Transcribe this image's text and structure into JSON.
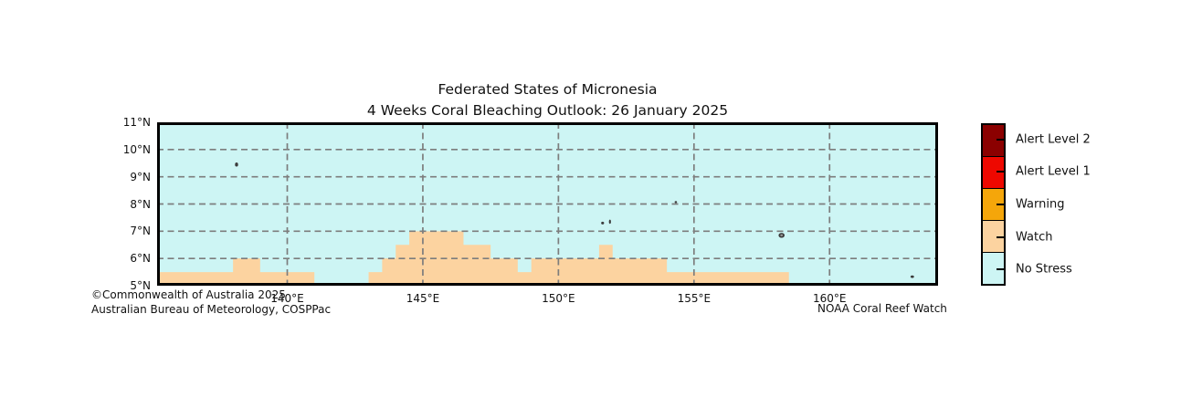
{
  "title": {
    "line1": "Federated States of Micronesia",
    "line2": "4 Weeks Coral Bleaching Outlook: 26 January 2025"
  },
  "map": {
    "lon_range": [
      135.2,
      164.0
    ],
    "lat_range": [
      5,
      11
    ],
    "lon_gridlines": [
      140,
      145,
      150,
      155,
      160
    ],
    "lat_gridlines": [
      6,
      7,
      8,
      9,
      10
    ],
    "x_ticks": [
      {
        "v": 140,
        "label": "140°E"
      },
      {
        "v": 145,
        "label": "145°E"
      },
      {
        "v": 150,
        "label": "150°E"
      },
      {
        "v": 155,
        "label": "155°E"
      },
      {
        "v": 160,
        "label": "160°E"
      }
    ],
    "y_ticks": [
      {
        "v": 11,
        "label": "11°N"
      },
      {
        "v": 10,
        "label": "10°N"
      },
      {
        "v": 9,
        "label": "9°N"
      },
      {
        "v": 8,
        "label": "8°N"
      },
      {
        "v": 7,
        "label": "7°N"
      },
      {
        "v": 6,
        "label": "6°N"
      },
      {
        "v": 5,
        "label": "5°N"
      }
    ],
    "background_status": "No Stress",
    "watch_segments": [
      {
        "lon_from": 135.2,
        "lon_to": 138.0,
        "lat_top": 5.5
      },
      {
        "lon_from": 138.0,
        "lon_to": 139.0,
        "lat_top": 6.0
      },
      {
        "lon_from": 139.0,
        "lon_to": 141.0,
        "lat_top": 5.5
      },
      {
        "lon_from": 143.0,
        "lon_to": 143.5,
        "lat_top": 5.5
      },
      {
        "lon_from": 143.5,
        "lon_to": 144.0,
        "lat_top": 6.0
      },
      {
        "lon_from": 144.0,
        "lon_to": 144.5,
        "lat_top": 6.5
      },
      {
        "lon_from": 144.5,
        "lon_to": 146.5,
        "lat_top": 7.0
      },
      {
        "lon_from": 146.5,
        "lon_to": 147.5,
        "lat_top": 6.5
      },
      {
        "lon_from": 147.5,
        "lon_to": 148.5,
        "lat_top": 6.0
      },
      {
        "lon_from": 148.5,
        "lon_to": 149.0,
        "lat_top": 5.5
      },
      {
        "lon_from": 149.0,
        "lon_to": 151.5,
        "lat_top": 6.0
      },
      {
        "lon_from": 151.5,
        "lon_to": 152.0,
        "lat_top": 6.5
      },
      {
        "lon_from": 152.0,
        "lon_to": 154.0,
        "lat_top": 6.0
      },
      {
        "lon_from": 154.0,
        "lon_to": 158.5,
        "lat_top": 5.5
      }
    ],
    "islands": [
      {
        "name": "yap",
        "lon": 138.13,
        "lat": 9.45,
        "rx": 1.7,
        "ry": 2.3
      },
      {
        "name": "reef-8n",
        "lon": 154.33,
        "lat": 8.07,
        "rx": 1.3,
        "ry": 1.2
      },
      {
        "name": "chuuk-west",
        "lon": 151.63,
        "lat": 7.3,
        "rx": 1.6,
        "ry": 1.5
      },
      {
        "name": "chuuk-east",
        "lon": 151.9,
        "lat": 7.35,
        "rx": 1.1,
        "ry": 2.3
      },
      {
        "name": "pohnpei",
        "lon": 158.23,
        "lat": 6.85,
        "rx": 3.3,
        "ry": 2.7,
        "inner_color": "#9c9c9c"
      },
      {
        "name": "kosrae",
        "lon": 163.05,
        "lat": 5.33,
        "rx": 1.9,
        "ry": 1.4
      }
    ]
  },
  "legend": {
    "entries": [
      {
        "label": "Alert Level 2",
        "color": "#8b0000"
      },
      {
        "label": "Alert Level 1",
        "color": "#ee0800"
      },
      {
        "label": "Warning",
        "color": "#f5a60a"
      },
      {
        "label": "Watch",
        "color": "#fcd3a0"
      },
      {
        "label": "No Stress",
        "color": "#cdf5f4"
      }
    ]
  },
  "credits": {
    "line1": "©Commonwealth of Australia 2025",
    "line2": "Australian Bureau of Meteorology, COSPPac",
    "right": "NOAA Coral Reef Watch"
  },
  "colors": {
    "no_stress": "#cdf5f4",
    "watch": "#fcd3a0",
    "grid": "#7d7d7d",
    "border": "#000000",
    "island": "#3c3c3c"
  }
}
